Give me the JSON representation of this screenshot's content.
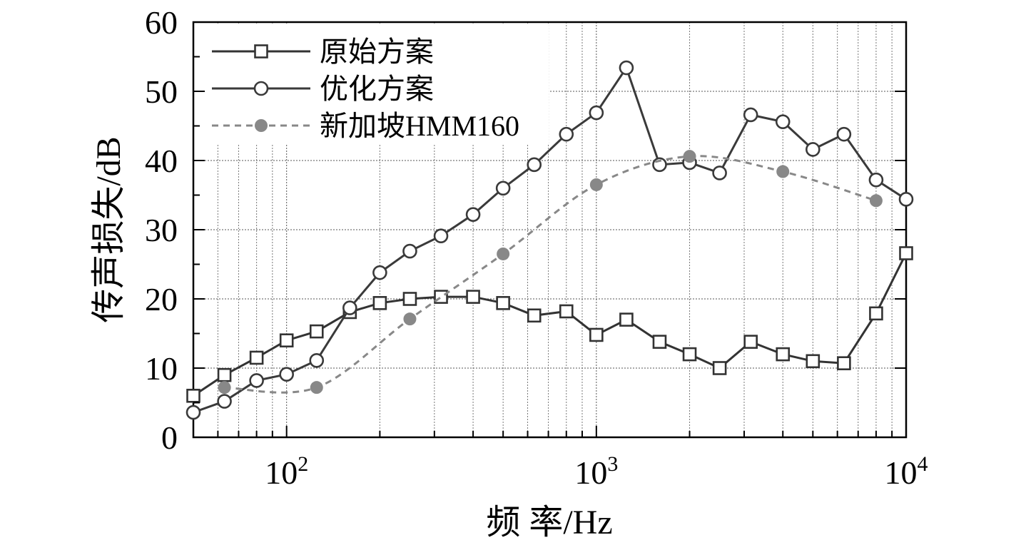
{
  "chart_data": {
    "type": "line",
    "xscale": "log",
    "xlim": [
      50,
      10000
    ],
    "ylim": [
      0,
      60
    ],
    "xlabel": "频 率/Hz",
    "ylabel": "传声损失/dB",
    "xticks": [
      {
        "value": 100,
        "base": "10",
        "exp": "2"
      },
      {
        "value": 1000,
        "base": "10",
        "exp": "3"
      },
      {
        "value": 10000,
        "base": "10",
        "exp": "4"
      }
    ],
    "yticks": [
      0,
      10,
      20,
      30,
      40,
      50,
      60
    ],
    "grid": true,
    "legend_position": "top-left",
    "series": [
      {
        "name": "原始方案",
        "color": "#333333",
        "marker": "square-open",
        "line": "solid",
        "x": [
          50,
          63,
          80,
          100,
          125,
          160,
          200,
          250,
          315,
          400,
          500,
          630,
          800,
          1000,
          1250,
          1600,
          2000,
          2500,
          3150,
          4000,
          5000,
          6300,
          8000,
          10000
        ],
        "y": [
          6,
          9,
          11.5,
          14,
          15.3,
          18.1,
          19.4,
          20,
          20.3,
          20.3,
          19.4,
          17.6,
          18.2,
          14.8,
          17,
          13.8,
          12,
          10,
          13.8,
          12,
          11,
          10.7,
          17.9,
          26.6
        ]
      },
      {
        "name": "优化方案",
        "color": "#3a3a3a",
        "marker": "circle-open",
        "line": "solid",
        "x": [
          50,
          63,
          80,
          100,
          125,
          160,
          200,
          250,
          315,
          400,
          500,
          630,
          800,
          1000,
          1250,
          1600,
          2000,
          2500,
          3150,
          4000,
          5000,
          6300,
          8000,
          10000
        ],
        "y": [
          3.6,
          5.2,
          8.2,
          9.1,
          11.1,
          18.7,
          23.8,
          26.9,
          29.1,
          32.2,
          36,
          39.4,
          43.8,
          46.9,
          53.4,
          39.4,
          39.7,
          38.2,
          46.6,
          45.6,
          41.6,
          43.8,
          37.2,
          34.4
        ]
      },
      {
        "name": "新加坡HMM160",
        "color": "#888888",
        "marker": "circle-filled",
        "line": "dashed",
        "x": [
          63,
          125,
          250,
          500,
          1000,
          2000,
          4000,
          8000
        ],
        "y": [
          7.2,
          7.2,
          17.1,
          26.5,
          36.5,
          40.6,
          38.4,
          34.2
        ]
      }
    ]
  }
}
